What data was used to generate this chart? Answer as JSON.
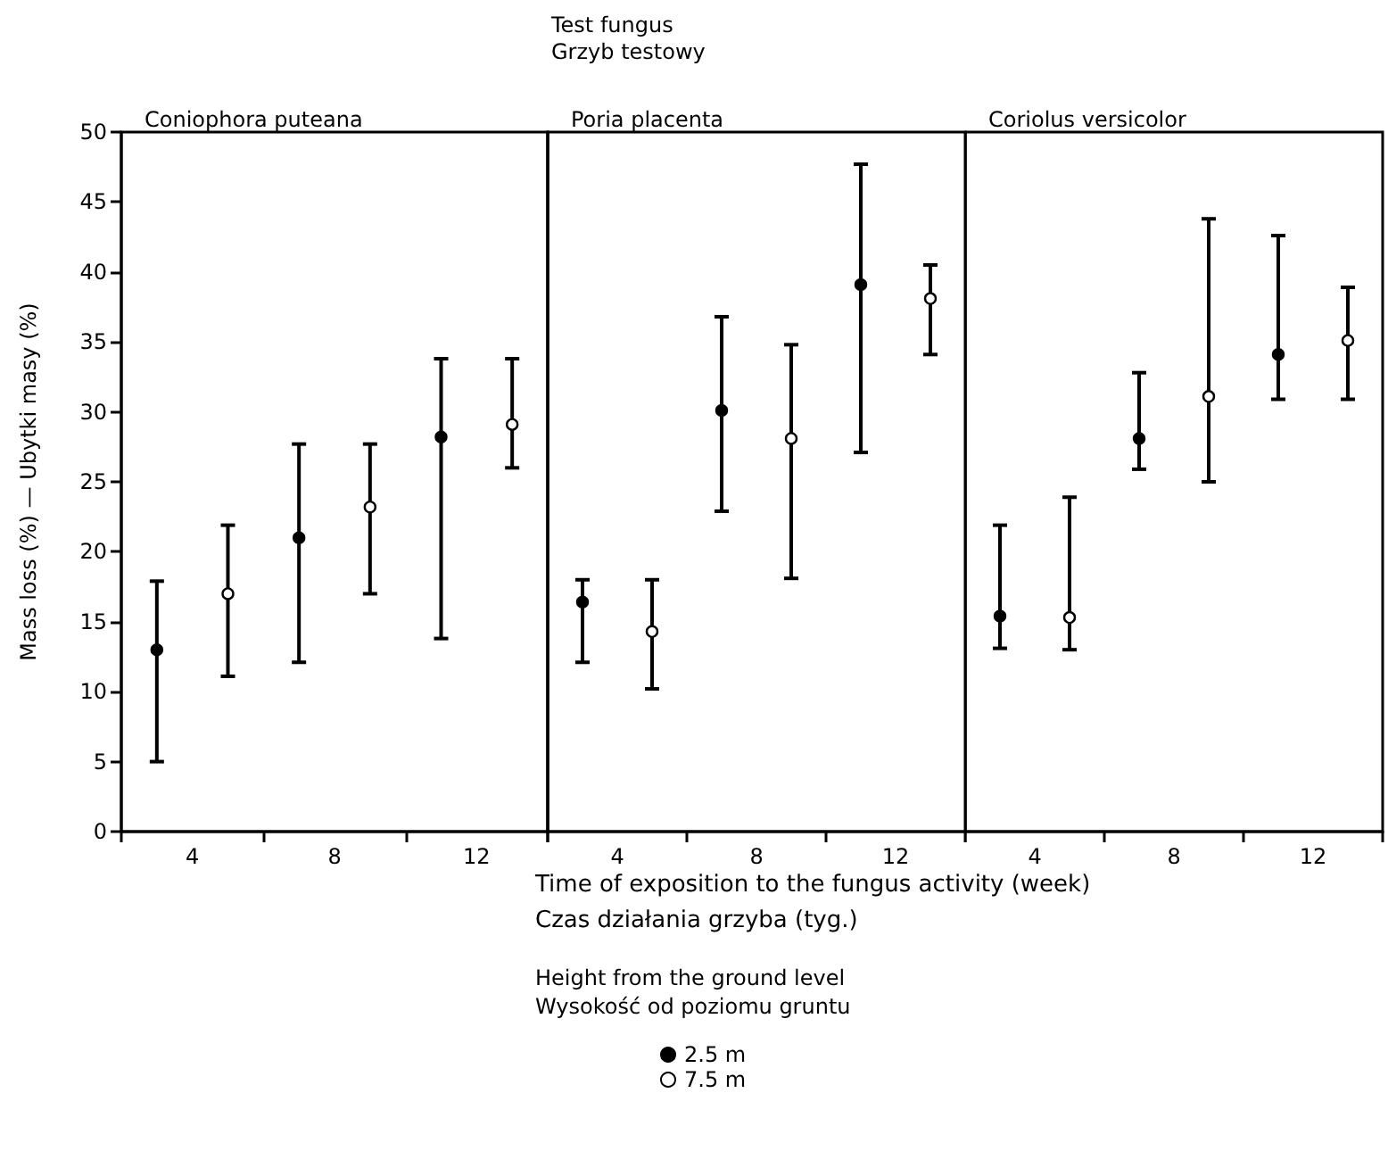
{
  "chart_data": [
    {
      "type": "scatter",
      "title": "Coniophora puteana",
      "ylabel": "Mass loss (%) — Ubytki masy (%)",
      "categories": [
        "4",
        "8",
        "12"
      ],
      "marker": "circle",
      "ylim": [
        0,
        50
      ],
      "yticks": [
        0,
        5,
        10,
        15,
        20,
        25,
        30,
        35,
        40,
        45,
        50
      ],
      "tick_labels": "xy",
      "legend": false,
      "series": [
        {
          "color": "#000000",
          "values": [
            13,
            21,
            28.2
          ],
          "errors": [
            [
              5,
              17.9
            ],
            [
              12.1,
              27.7
            ],
            [
              13.8,
              33.8
            ]
          ]
        },
        {
          "color": "#ffffff",
          "values": [
            17,
            23.2,
            29.1
          ],
          "errors": [
            [
              11.1,
              21.9
            ],
            [
              17,
              27.7
            ],
            [
              26,
              33.8
            ]
          ]
        }
      ]
    },
    {
      "type": "scatter",
      "title": "Poria placenta",
      "annotations": [
        "Test fungus",
        "Grzyb testowy"
      ],
      "xlabel": "Time of exposition to the fungus activity (week)\nCzas działania grzyba (tyg.)",
      "legend_title": "Height from the ground level\nWysokość od poziomu gruntu",
      "legend": "bottom",
      "categories": [
        "4",
        "8",
        "12"
      ],
      "marker": "circle",
      "ylim": [
        0,
        50
      ],
      "tick_labels": "x",
      "series": [
        {
          "name": "2.5 m",
          "color": "#000000",
          "values": [
            16.4,
            30.1,
            39.1
          ],
          "errors": [
            [
              12.1,
              18
            ],
            [
              22.9,
              36.8
            ],
            [
              27.1,
              47.7
            ]
          ]
        },
        {
          "name": "7.5 m",
          "color": "#ffffff",
          "values": [
            14.3,
            28.1,
            38.1
          ],
          "errors": [
            [
              10.2,
              18
            ],
            [
              18.1,
              34.8
            ],
            [
              34.1,
              40.5
            ]
          ]
        }
      ]
    },
    {
      "type": "scatter",
      "title": "Coriolus versicolor",
      "categories": [
        "4",
        "8",
        "12"
      ],
      "marker": "circle",
      "ylim": [
        0,
        50
      ],
      "tick_labels": "x",
      "legend": false,
      "series": [
        {
          "color": "#000000",
          "values": [
            15.4,
            28.1,
            34.1
          ],
          "errors": [
            [
              13.1,
              21.9
            ],
            [
              25.9,
              32.8
            ],
            [
              30.9,
              42.6
            ]
          ]
        },
        {
          "color": "#ffffff",
          "values": [
            15.3,
            31.1,
            35.1
          ],
          "errors": [
            [
              13,
              23.9
            ],
            [
              25,
              43.8
            ],
            [
              30.9,
              38.9
            ]
          ]
        }
      ]
    }
  ]
}
